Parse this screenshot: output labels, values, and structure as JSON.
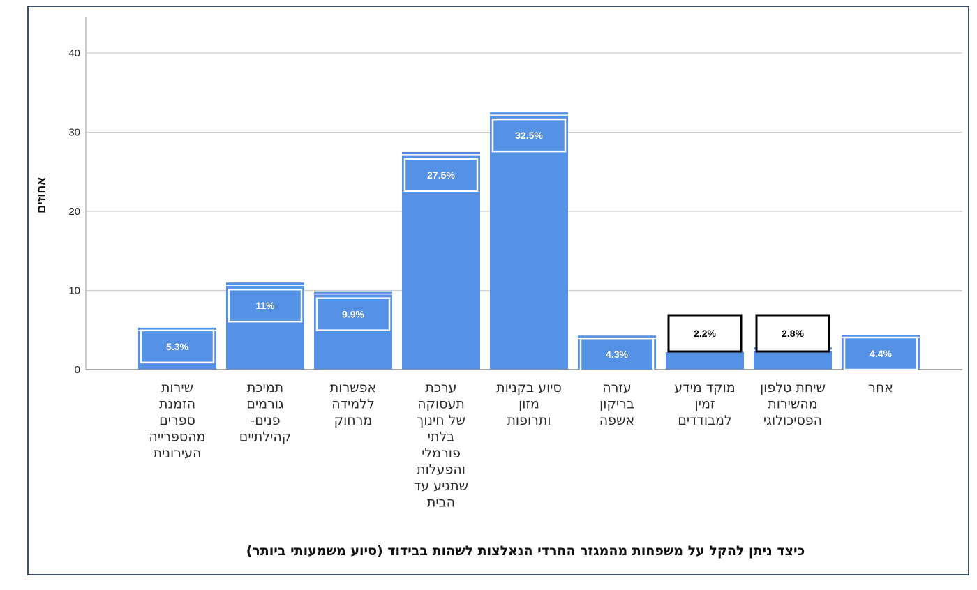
{
  "chart_data": {
    "type": "bar",
    "title": "כיצד ניתן להקל על משפחות מהמגזר החרדי הנאלצות לשהות בבידוד (סיוע משמעותי ביותר)",
    "xlabel": "",
    "ylabel": "אחוזים",
    "ylim": [
      0,
      45
    ],
    "yticks": [
      0,
      10,
      20,
      30,
      40
    ],
    "grid": true,
    "categories": [
      [
        "שירות",
        "הזמנת",
        "ספרים",
        "מהספרייה",
        "העירונית"
      ],
      [
        "תמיכת",
        "גורמים",
        "פנים-",
        "קהילתיים"
      ],
      [
        "אפשרות",
        "ללמידה",
        "מרחוק"
      ],
      [
        "ערכת",
        "תעסוקה",
        "של חינוך",
        "בלתי",
        "פורמלי",
        "והפעלות",
        "שתגיע עד",
        "הבית"
      ],
      [
        "סיוע בקניות",
        "מזון",
        "ותרופות"
      ],
      [
        "עזרה",
        "בריקון",
        "אשפה"
      ],
      [
        "מוקד מידע",
        "זמין",
        "למבודדים"
      ],
      [
        "שיחת טלפון",
        "מהשירות",
        "הפסיכולוגי"
      ],
      [
        "אחר"
      ]
    ],
    "values": [
      5.3,
      11,
      9.9,
      27.5,
      32.5,
      4.3,
      2.2,
      2.8,
      4.4
    ],
    "data_labels": [
      "5.3%",
      "11%",
      "9.9%",
      "27.5%",
      "32.5%",
      "4.3%",
      "2.2%",
      "2.8%",
      "4.4%"
    ],
    "bar_color": "#5592e6",
    "highlighted_labels": [
      6,
      7
    ]
  }
}
